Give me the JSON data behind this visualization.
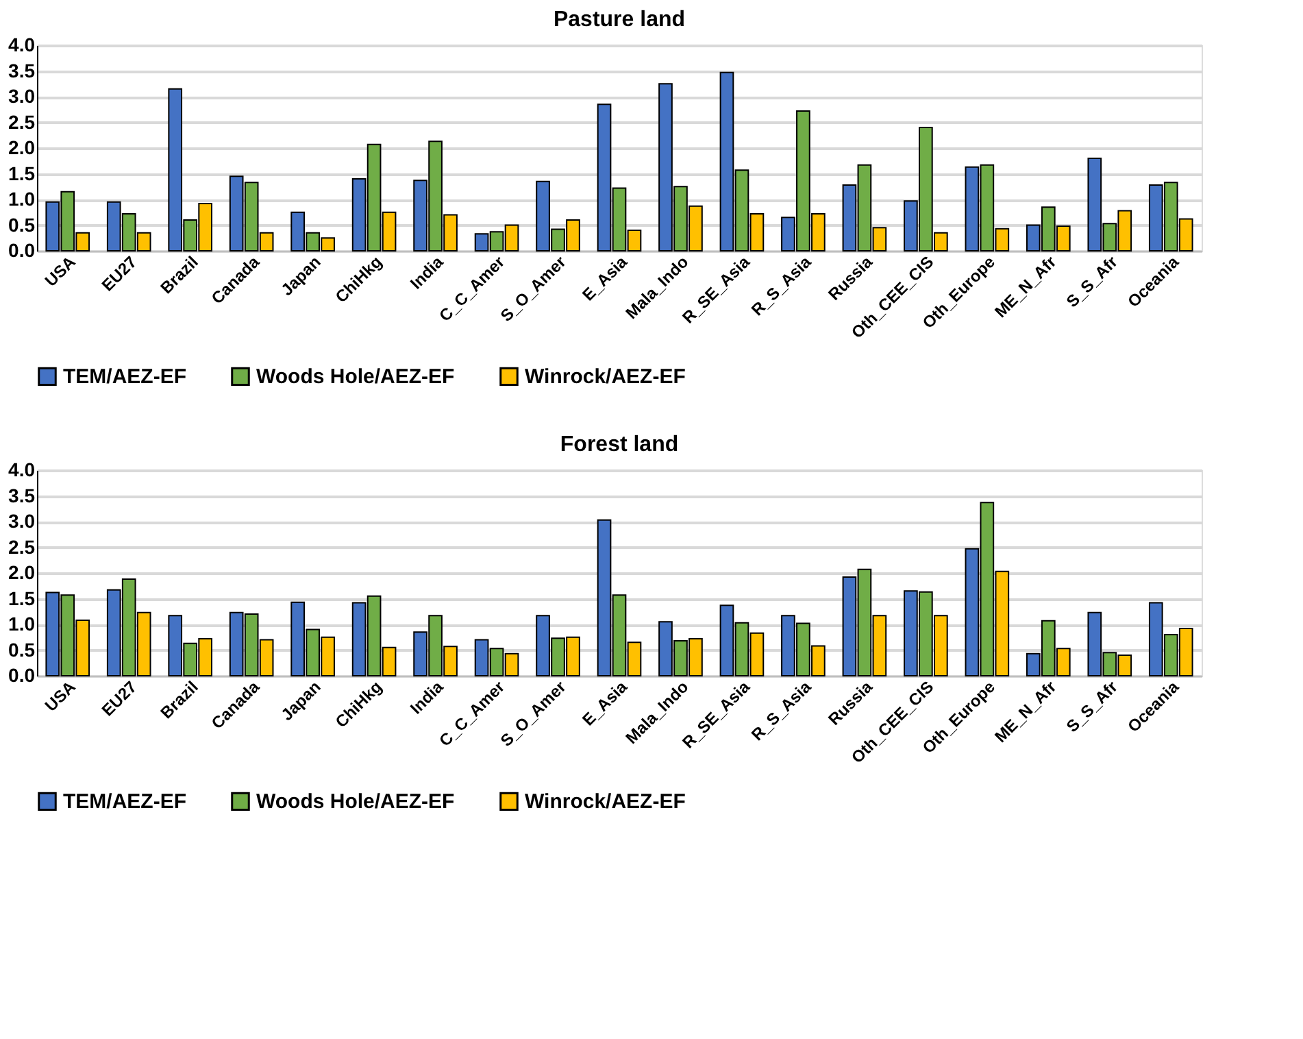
{
  "chart_data": [
    {
      "type": "bar",
      "title": "Pasture land",
      "categories": [
        "USA",
        "EU27",
        "Brazil",
        "Canada",
        "Japan",
        "ChiHkg",
        "India",
        "C_C_Amer",
        "S_O_Amer",
        "E_Asia",
        "Mala_Indo",
        "R_SE_Asia",
        "R_S_Asia",
        "Russia",
        "Oth_CEE_CIS",
        "Oth_Europe",
        "ME_N_Afr",
        "S_S_Afr",
        "Oceania"
      ],
      "series": [
        {
          "name": "TEM/AEZ-EF",
          "color": "#4472c4",
          "values": [
            0.95,
            0.95,
            3.15,
            1.45,
            0.75,
            1.4,
            1.37,
            0.33,
            1.35,
            2.85,
            3.25,
            3.47,
            0.65,
            1.28,
            0.97,
            1.63,
            0.5,
            1.8,
            1.28
          ]
        },
        {
          "name": "Woods Hole/AEZ-EF",
          "color": "#70ad47",
          "values": [
            1.15,
            0.72,
            0.6,
            1.33,
            0.35,
            2.07,
            2.13,
            0.37,
            0.42,
            1.22,
            1.25,
            1.57,
            2.72,
            1.67,
            2.4,
            1.67,
            0.85,
            0.53,
            1.33
          ]
        },
        {
          "name": "Winrock/AEZ-EF",
          "color": "#ffc000",
          "values": [
            0.35,
            0.35,
            0.92,
            0.35,
            0.25,
            0.75,
            0.7,
            0.5,
            0.6,
            0.4,
            0.87,
            0.72,
            0.72,
            0.45,
            0.35,
            0.43,
            0.48,
            0.78,
            0.62
          ]
        }
      ],
      "ylim": [
        0,
        4
      ],
      "yticks": [
        {
          "value": 0,
          "label": "0.0"
        },
        {
          "value": 0.5,
          "label": "0.5"
        },
        {
          "value": 1,
          "label": "1.0"
        },
        {
          "value": 1.5,
          "label": "1.5"
        },
        {
          "value": 2,
          "label": "2.0"
        },
        {
          "value": 2.5,
          "label": "2.5"
        },
        {
          "value": 3,
          "label": "3.0"
        },
        {
          "value": 3.5,
          "label": "3.5"
        },
        {
          "value": 4,
          "label": "4.0"
        }
      ],
      "grid": "y",
      "legend": "bottom"
    },
    {
      "type": "bar",
      "title": "Forest land",
      "categories": [
        "USA",
        "EU27",
        "Brazil",
        "Canada",
        "Japan",
        "ChiHkg",
        "India",
        "C_C_Amer",
        "S_O_Amer",
        "E_Asia",
        "Mala_Indo",
        "R_SE_Asia",
        "R_S_Asia",
        "Russia",
        "Oth_CEE_CIS",
        "Oth_Europe",
        "ME_N_Afr",
        "S_S_Afr",
        "Oceania"
      ],
      "series": [
        {
          "name": "TEM/AEZ-EF",
          "color": "#4472c4",
          "values": [
            1.62,
            1.67,
            1.17,
            1.23,
            1.43,
            1.42,
            0.85,
            0.7,
            1.17,
            3.03,
            1.05,
            1.37,
            1.17,
            1.92,
            1.65,
            2.47,
            0.43,
            1.23,
            1.42
          ]
        },
        {
          "name": "Woods Hole/AEZ-EF",
          "color": "#70ad47",
          "values": [
            1.57,
            1.88,
            0.63,
            1.2,
            0.9,
            1.55,
            1.17,
            0.53,
            0.73,
            1.57,
            0.68,
            1.03,
            1.02,
            2.07,
            1.63,
            3.37,
            1.07,
            0.45,
            0.8
          ]
        },
        {
          "name": "Winrock/AEZ-EF",
          "color": "#ffc000",
          "values": [
            1.08,
            1.23,
            0.72,
            0.7,
            0.75,
            0.55,
            0.57,
            0.43,
            0.75,
            0.65,
            0.72,
            0.83,
            0.58,
            1.17,
            1.17,
            2.03,
            0.53,
            0.4,
            0.92
          ]
        }
      ],
      "ylim": [
        0,
        4
      ],
      "yticks": [
        {
          "value": 0,
          "label": "0.0"
        },
        {
          "value": 0.5,
          "label": "0.5"
        },
        {
          "value": 1,
          "label": "1.0"
        },
        {
          "value": 1.5,
          "label": "1.5"
        },
        {
          "value": 2,
          "label": "2.0"
        },
        {
          "value": 2.5,
          "label": "2.5"
        },
        {
          "value": 3,
          "label": "3.0"
        },
        {
          "value": 3.5,
          "label": "3.5"
        },
        {
          "value": 4,
          "label": "4.0"
        }
      ],
      "grid": "y",
      "legend": "bottom"
    }
  ]
}
